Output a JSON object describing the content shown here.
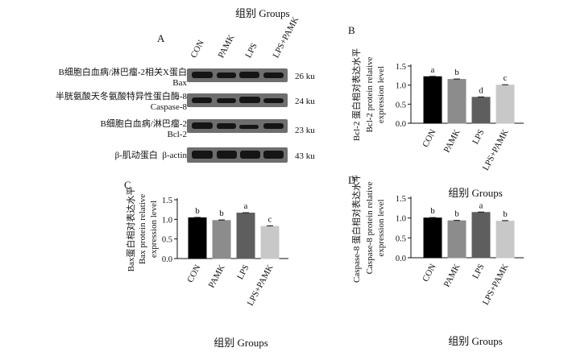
{
  "western_blot": {
    "panel": "A",
    "groups_label": "组别 Groups",
    "lanes": [
      "CON",
      "PAMK",
      "LPS",
      "LPS+PAMK"
    ],
    "rows": [
      {
        "zh": "B细胞白血病/淋巴瘤-2相关X蛋白",
        "en": "Bax",
        "size": "26 ku"
      },
      {
        "zh": "半胱氨酸天冬氨酸特异性蛋白酶-8",
        "en": "Caspase-8",
        "size": "24 ku"
      },
      {
        "zh": "B细胞白血病/淋巴瘤-2",
        "en": "Bcl-2",
        "size": "23 ku"
      },
      {
        "zh": "β-肌动蛋白",
        "en": "β-actin",
        "size": "43 ku"
      }
    ]
  },
  "colors": {
    "CON": "#000000",
    "PAMK": "#8c8c8c",
    "LPS": "#5e5e5e",
    "LPS+PAMK": "#c8c8c8",
    "blot_bg": "#6e6e6e",
    "band": "#151515"
  },
  "chart_data": [
    {
      "panel": "B",
      "type": "bar",
      "categories": [
        "CON",
        "PAMK",
        "LPS",
        "LPS+PAMK"
      ],
      "values": [
        1.22,
        1.15,
        0.68,
        1.0
      ],
      "errors": [
        0.01,
        0.01,
        0.01,
        0.01
      ],
      "letters": [
        "a",
        "b",
        "d",
        "c"
      ],
      "ylabel_zh": "Bcl-2 蛋白相对表达水平",
      "ylabel_en": "Bcl-2  protein relative",
      "ylabel_en2": "expression level",
      "xlabel": "组别 Groups",
      "ylim": [
        0,
        1.5
      ],
      "yticks": [
        "0.0",
        "0.5",
        "1.0",
        "1.5"
      ]
    },
    {
      "panel": "C",
      "type": "bar",
      "categories": [
        "CON",
        "PAMK",
        "LPS",
        "LPS+PAMK"
      ],
      "values": [
        1.04,
        0.97,
        1.16,
        0.82
      ],
      "errors": [
        0.01,
        0.015,
        0.01,
        0.015
      ],
      "letters": [
        "b",
        "b",
        "a",
        "c"
      ],
      "ylabel_zh": "Bax蛋白相对表达水平",
      "ylabel_en": "Bax protein relative",
      "ylabel_en2": "expression level",
      "xlabel": "组别 Groups",
      "ylim": [
        0,
        1.5
      ],
      "yticks": [
        "0.0",
        "0.5",
        "1.0",
        "1.5"
      ]
    },
    {
      "panel": "D",
      "type": "bar",
      "categories": [
        "CON",
        "PAMK",
        "LPS",
        "LPS+PAMK"
      ],
      "values": [
        1.0,
        0.93,
        1.14,
        0.92
      ],
      "errors": [
        0.012,
        0.01,
        0.01,
        0.015
      ],
      "letters": [
        "b",
        "b",
        "a",
        "b"
      ],
      "ylabel_zh": "Caspase-8 蛋白相对表达水平",
      "ylabel_en": "Caspase-8 protein relative",
      "ylabel_en2": "expression level",
      "xlabel": "组别 Groups",
      "ylim": [
        0,
        1.5
      ],
      "yticks": [
        "0.0",
        "0.5",
        "1.0",
        "1.5"
      ]
    }
  ]
}
